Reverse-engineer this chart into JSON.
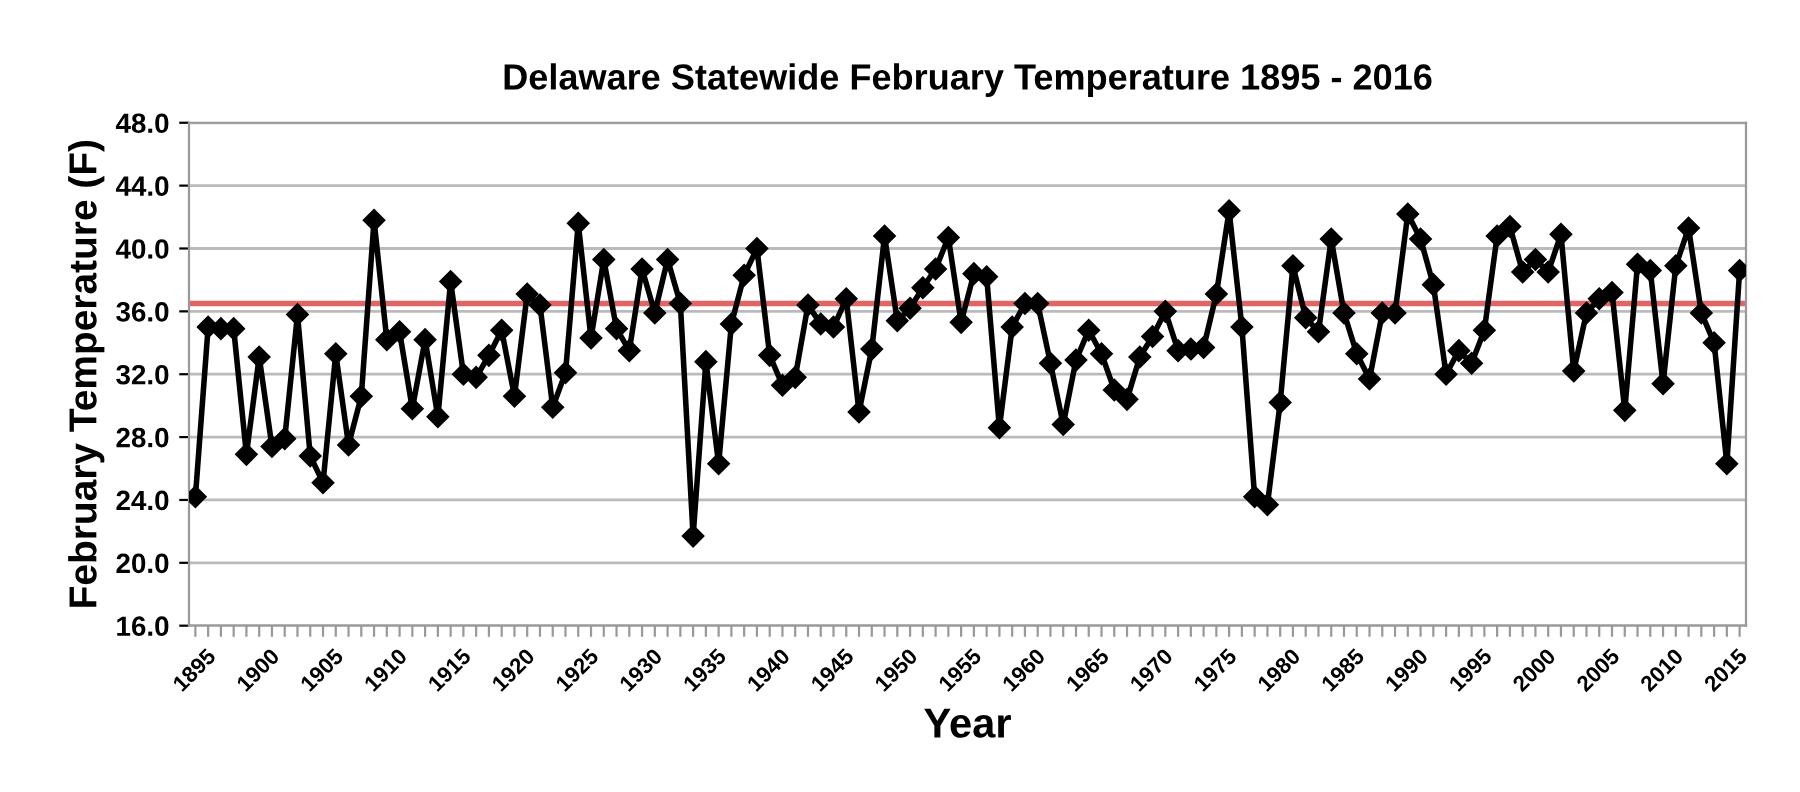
{
  "chart_data": {
    "type": "line",
    "title": "Delaware Statewide February Temperature 1895 - 2016",
    "xlabel": "Year",
    "ylabel": "February Temperature (F)",
    "categories": [
      "1895",
      null,
      null,
      null,
      null,
      "1900",
      null,
      null,
      null,
      null,
      "1905",
      null,
      null,
      null,
      null,
      "1910",
      null,
      null,
      null,
      null,
      "1915",
      null,
      null,
      null,
      null,
      "1920",
      null,
      null,
      null,
      null,
      "1925",
      null,
      null,
      null,
      null,
      "1930",
      null,
      null,
      null,
      null,
      "1935",
      null,
      null,
      null,
      null,
      "1940",
      null,
      null,
      null,
      null,
      "1945",
      null,
      null,
      null,
      null,
      "1950",
      null,
      null,
      null,
      null,
      "1955",
      null,
      null,
      null,
      null,
      "1960",
      null,
      null,
      null,
      null,
      "1965",
      null,
      null,
      null,
      null,
      "1970",
      null,
      null,
      null,
      null,
      "1975",
      null,
      null,
      null,
      null,
      "1980",
      null,
      null,
      null,
      null,
      "1985",
      null,
      null,
      null,
      null,
      "1990",
      null,
      null,
      null,
      null,
      "1995",
      null,
      null,
      null,
      null,
      "2000",
      null,
      null,
      null,
      null,
      "2005",
      null,
      null,
      null,
      null,
      "2010",
      null,
      null,
      null,
      null,
      "2015",
      null
    ],
    "series": [
      {
        "color": "#000000",
        "values": [
          24.2,
          35.0,
          34.9,
          34.9,
          26.9,
          33.1,
          27.4,
          27.9,
          35.8,
          26.8,
          25.1,
          33.3,
          27.5,
          30.6,
          41.8,
          34.2,
          34.7,
          29.8,
          34.2,
          29.3,
          37.9,
          32.0,
          31.8,
          33.2,
          34.8,
          30.6,
          37.1,
          36.4,
          29.9,
          32.1,
          41.6,
          34.3,
          39.3,
          34.9,
          33.5,
          38.7,
          35.9,
          39.3,
          36.5,
          21.7,
          32.8,
          26.3,
          35.2,
          38.3,
          40.0,
          33.2,
          31.3,
          31.8,
          36.4,
          35.2,
          35.0,
          36.8,
          29.6,
          33.6,
          40.8,
          35.4,
          36.2,
          37.5,
          38.7,
          40.7,
          35.3,
          38.4,
          38.2,
          28.6,
          35.0,
          36.5,
          36.5,
          32.7,
          28.8,
          32.9,
          34.8,
          33.3,
          31.0,
          30.4,
          33.1,
          34.4,
          36.0,
          33.5,
          33.6,
          33.7,
          37.1,
          42.4,
          35.0,
          24.2,
          23.7,
          30.2,
          38.9,
          35.6,
          34.7,
          40.6,
          35.9,
          33.3,
          31.7,
          35.9,
          35.9,
          42.2,
          40.6,
          37.7,
          32.0,
          33.5,
          32.7,
          34.8,
          40.8,
          41.4,
          38.5,
          39.3,
          38.5,
          40.9,
          32.2,
          35.9,
          36.8,
          37.2,
          29.7,
          39.0,
          38.6,
          31.4,
          38.9,
          41.3,
          35.9,
          34.0,
          26.3,
          38.6
        ]
      }
    ],
    "ylim": [
      16,
      48
    ],
    "yticks": [
      {
        "value": 16,
        "label": "16.0"
      },
      {
        "value": 20,
        "label": "20.0"
      },
      {
        "value": 24,
        "label": "24.0"
      },
      {
        "value": 28,
        "label": "28.0"
      },
      {
        "value": 32,
        "label": "32.0"
      },
      {
        "value": 36,
        "label": "36.0"
      },
      {
        "value": 40,
        "label": "40.0"
      },
      {
        "value": 44,
        "label": "44.0"
      },
      {
        "value": 48,
        "label": "48.0"
      }
    ],
    "ref_lines": [
      {
        "axis": "y",
        "value": 36.5,
        "color": "#e06666"
      }
    ],
    "grid": "y",
    "legend": false,
    "marker": "diamond",
    "line_style": "solid"
  }
}
